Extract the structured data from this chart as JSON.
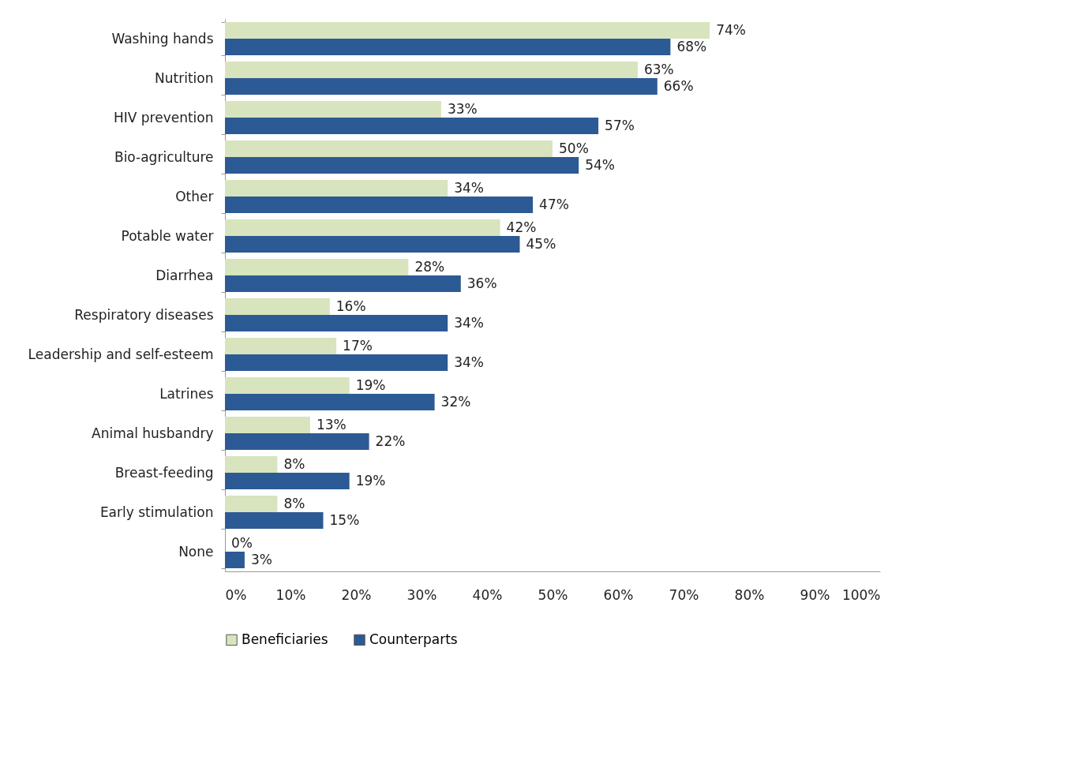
{
  "chart_data": {
    "type": "bar",
    "orientation": "horizontal",
    "categories": [
      "Washing hands",
      "Nutrition",
      "HIV prevention",
      "Bio-agriculture",
      "Other",
      "Potable water",
      "Diarrhea",
      "Respiratory diseases",
      "Leadership and self-esteem",
      "Latrines",
      "Animal husbandry",
      "Breast-feeding",
      "Early stimulation",
      "None"
    ],
    "series": [
      {
        "name": "Beneficiaries",
        "color": "#d7e4bd",
        "values": [
          74,
          63,
          33,
          50,
          34,
          42,
          28,
          16,
          17,
          19,
          13,
          8,
          8,
          0
        ],
        "value_labels": [
          "74%",
          "63%",
          "33%",
          "50%",
          "34%",
          "42%",
          "28%",
          "16%",
          "17%",
          "19%",
          "13%",
          "8%",
          "8%",
          "0%"
        ]
      },
      {
        "name": "Counterparts",
        "color": "#2c5a94",
        "values": [
          68,
          66,
          57,
          54,
          47,
          45,
          36,
          34,
          34,
          32,
          22,
          19,
          15,
          3
        ],
        "value_labels": [
          "68%",
          "66%",
          "57%",
          "54%",
          "47%",
          "45%",
          "36%",
          "34%",
          "34%",
          "32%",
          "22%",
          "19%",
          "15%",
          "3%"
        ]
      }
    ],
    "xlim": [
      0,
      100
    ],
    "xticks": [
      {
        "value": 0,
        "label": "0%"
      },
      {
        "value": 10,
        "label": "10%"
      },
      {
        "value": 20,
        "label": "20%"
      },
      {
        "value": 30,
        "label": "30%"
      },
      {
        "value": 40,
        "label": "40%"
      },
      {
        "value": 50,
        "label": "50%"
      },
      {
        "value": 60,
        "label": "60%"
      },
      {
        "value": 70,
        "label": "70%"
      },
      {
        "value": 80,
        "label": "80%"
      },
      {
        "value": 90,
        "label": "90%"
      },
      {
        "value": 100,
        "label": "100%"
      }
    ],
    "grid": false,
    "legend": "bottom"
  }
}
